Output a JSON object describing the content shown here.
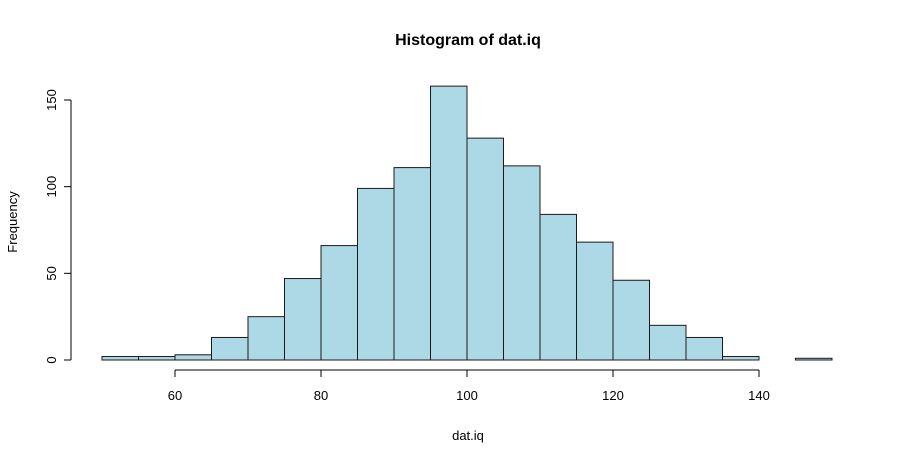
{
  "chart_data": {
    "type": "bar",
    "title": "Histogram of dat.iq",
    "xlabel": "dat.iq",
    "ylabel": "Frequency",
    "bin_width": 5,
    "bins": [
      {
        "x0": 50,
        "x1": 55,
        "count": 2
      },
      {
        "x0": 55,
        "x1": 60,
        "count": 2
      },
      {
        "x0": 60,
        "x1": 65,
        "count": 3
      },
      {
        "x0": 65,
        "x1": 70,
        "count": 13
      },
      {
        "x0": 70,
        "x1": 75,
        "count": 25
      },
      {
        "x0": 75,
        "x1": 80,
        "count": 47
      },
      {
        "x0": 80,
        "x1": 85,
        "count": 66
      },
      {
        "x0": 85,
        "x1": 90,
        "count": 99
      },
      {
        "x0": 90,
        "x1": 95,
        "count": 111
      },
      {
        "x0": 95,
        "x1": 100,
        "count": 158
      },
      {
        "x0": 100,
        "x1": 105,
        "count": 128
      },
      {
        "x0": 105,
        "x1": 110,
        "count": 112
      },
      {
        "x0": 110,
        "x1": 115,
        "count": 84
      },
      {
        "x0": 115,
        "x1": 120,
        "count": 68
      },
      {
        "x0": 120,
        "x1": 125,
        "count": 46
      },
      {
        "x0": 125,
        "x1": 130,
        "count": 20
      },
      {
        "x0": 130,
        "x1": 135,
        "count": 13
      },
      {
        "x0": 135,
        "x1": 140,
        "count": 2
      },
      {
        "x0": 140,
        "x1": 145,
        "count": 0
      },
      {
        "x0": 145,
        "x1": 150,
        "count": 1
      }
    ],
    "xticks": [
      60,
      80,
      100,
      120,
      140
    ],
    "yticks": [
      0,
      50,
      100,
      150
    ],
    "xlim": [
      50,
      150
    ],
    "ylim": [
      0,
      158
    ],
    "grid": false,
    "legend": "none",
    "bar_color": "#add8e6",
    "border_color": "#1a1a1a"
  }
}
